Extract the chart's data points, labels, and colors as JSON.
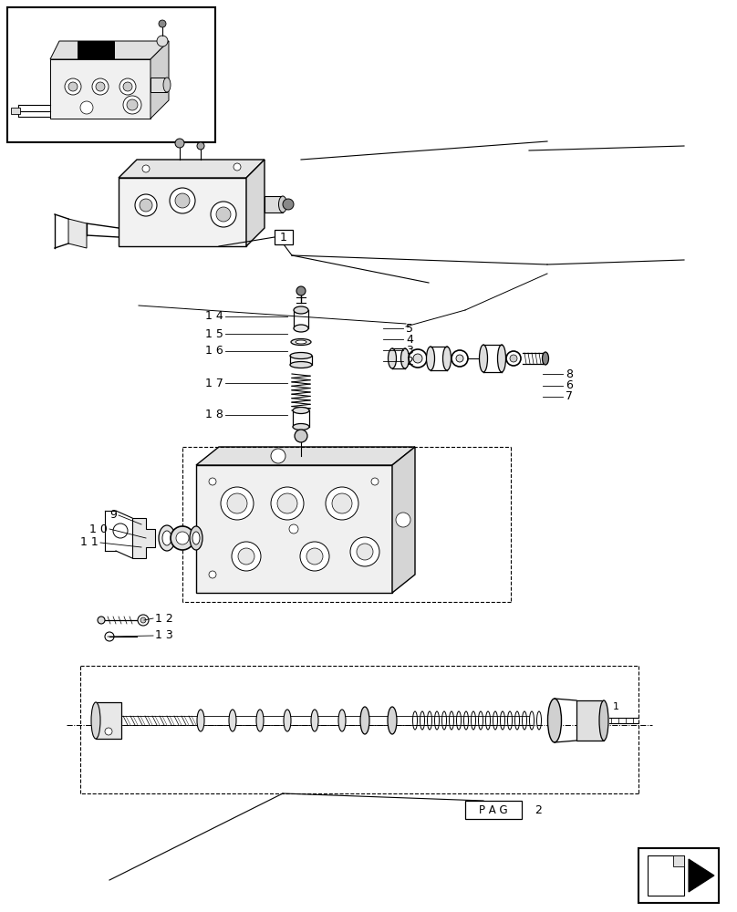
{
  "bg_color": "#ffffff",
  "line_color": "#000000",
  "figsize": [
    8.08,
    10.0
  ],
  "dpi": 100,
  "page_label": "PAG",
  "page_num": "2"
}
